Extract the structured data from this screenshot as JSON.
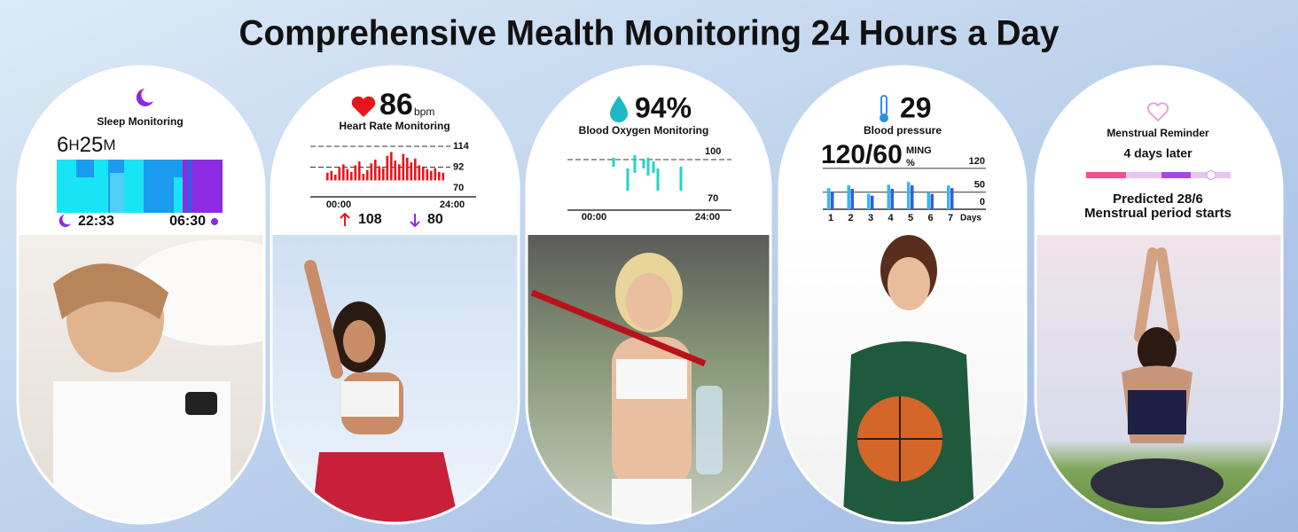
{
  "header": {
    "title": "Comprehensive Mealth Monitoring 24 Hours a Day"
  },
  "sleep": {
    "title": "Sleep Monitoring",
    "hours": 6,
    "hours_unit": "H",
    "minutes": 25,
    "minutes_unit": "M",
    "bedtime": "22:33",
    "wake_time": "06:30"
  },
  "heart_rate": {
    "value": 86,
    "unit": "bpm",
    "title": "Heart Rate Monitoring",
    "ylim": [
      70,
      114
    ],
    "yticks": [
      114,
      92,
      70
    ],
    "x_start": "00:00",
    "x_end": "24:00",
    "color": "#e8151b",
    "values": [
      86,
      88,
      84,
      92,
      95,
      90,
      87,
      94,
      98,
      85,
      89,
      96,
      100,
      93,
      91,
      104,
      108,
      99,
      95,
      106,
      102,
      97,
      101,
      94,
      92,
      90,
      88,
      91,
      87,
      86
    ],
    "max": 108,
    "min": 80
  },
  "blood_oxygen": {
    "value": "94%",
    "title": "Blood Oxygen Monitoring",
    "yticks": [
      100,
      70
    ],
    "x_start": "00:00",
    "x_end": "24:00"
  },
  "blood_pressure": {
    "temperature": 29,
    "title": "Blood pressure",
    "reading": "120/60",
    "unit_top": "MING",
    "unit_bottom": "%",
    "ylim": [
      0,
      130
    ],
    "yticks": [
      120,
      50,
      0
    ],
    "days": [
      "1",
      "2",
      "3",
      "4",
      "5",
      "6",
      "7"
    ],
    "days_label": "Days",
    "series": [
      {
        "color": "#35b8f0",
        "values": [
          62,
          70,
          45,
          72,
          80,
          50,
          70
        ]
      },
      {
        "color": "#2f5fe0",
        "values": [
          50,
          60,
          40,
          60,
          70,
          45,
          62
        ]
      }
    ]
  },
  "menstrual": {
    "title": "Menstrual Reminder",
    "subtitle": "4 days later",
    "prediction": "Predicted 28/6",
    "note": "Menstrual period starts"
  }
}
